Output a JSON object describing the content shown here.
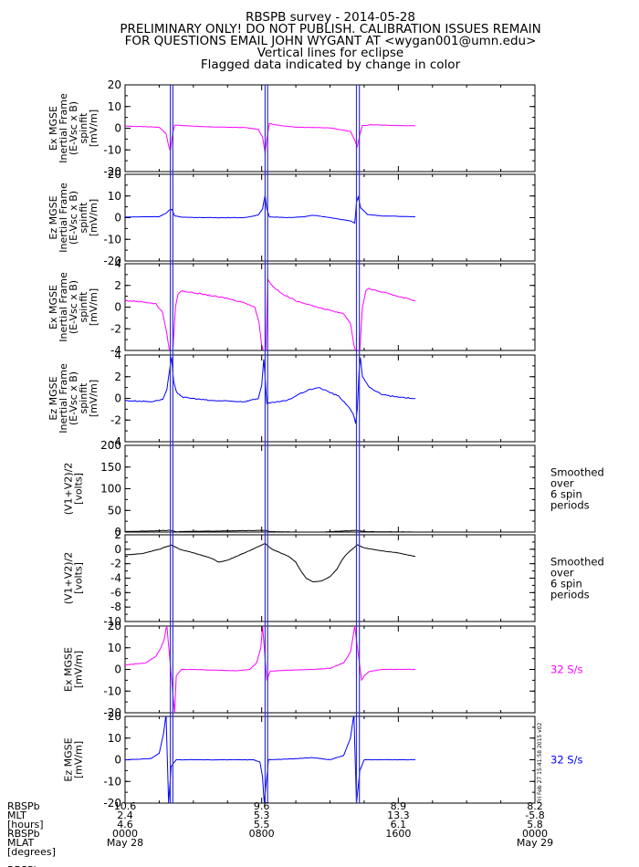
{
  "header": {
    "lines": [
      "RBSPB survey - 2014-05-28",
      "PRELIMINARY ONLY! DO NOT PUBLISH. CALIBRATION ISSUES REMAIN",
      "FOR QUESTIONS EMAIL JOHN WYGANT AT <wygan001@umn.edu>",
      "Vertical lines for eclipse",
      "Flagged data indicated by change in color"
    ]
  },
  "colors": {
    "magenta": "#ff00ff",
    "blue": "#0000ff",
    "black": "#000000",
    "eclipse_line": "#3333cc"
  },
  "eclipse_lines_hours": [
    2.65,
    2.8,
    8.2,
    8.35,
    13.55,
    13.72
  ],
  "chart_data": [
    {
      "type": "line",
      "ylabel_lines": [
        "Ex MGSE",
        "Inertial Frame",
        "(E-Vsc x B)",
        "spinfit",
        "[mV/m]"
      ],
      "ylim": [
        -20,
        20
      ],
      "yticks": [
        -20,
        -10,
        0,
        10,
        20
      ],
      "color": "magenta",
      "points": [
        [
          0,
          1
        ],
        [
          2.0,
          0.5
        ],
        [
          2.4,
          -2.5
        ],
        [
          2.55,
          -8
        ],
        [
          2.65,
          -10.5
        ],
        [
          2.78,
          -3
        ],
        [
          2.9,
          1.5
        ],
        [
          3.4,
          1.2
        ],
        [
          5,
          0.6
        ],
        [
          7,
          0.3
        ],
        [
          7.8,
          -0.5
        ],
        [
          8.05,
          -4
        ],
        [
          8.2,
          -11.5
        ],
        [
          8.3,
          -5
        ],
        [
          8.45,
          2.2
        ],
        [
          8.8,
          1.5
        ],
        [
          10,
          0.5
        ],
        [
          12,
          0.2
        ],
        [
          13.2,
          -1.5
        ],
        [
          13.45,
          -5.5
        ],
        [
          13.6,
          -8.5
        ],
        [
          13.75,
          -3
        ],
        [
          13.9,
          1.2
        ],
        [
          14.5,
          1.6
        ],
        [
          16,
          1.2
        ],
        [
          17,
          1.1
        ]
      ]
    },
    {
      "type": "line",
      "ylabel_lines": [
        "Ez MGSE",
        "Inertial Frame",
        "(E-Vsc x B)",
        "spinfit",
        "[mV/m]"
      ],
      "ylim": [
        -20,
        20
      ],
      "yticks": [
        -20,
        -10,
        0,
        10,
        20
      ],
      "color": "blue",
      "points": [
        [
          0,
          0.3
        ],
        [
          2.0,
          0.5
        ],
        [
          2.4,
          2
        ],
        [
          2.6,
          3.5
        ],
        [
          2.75,
          3.8
        ],
        [
          2.9,
          0.8
        ],
        [
          3.4,
          0.2
        ],
        [
          5,
          0
        ],
        [
          7,
          0
        ],
        [
          7.8,
          1.2
        ],
        [
          8.05,
          4
        ],
        [
          8.2,
          10.5
        ],
        [
          8.3,
          4
        ],
        [
          8.45,
          0.4
        ],
        [
          9.5,
          0
        ],
        [
          10.5,
          0.4
        ],
        [
          11.0,
          1.1
        ],
        [
          11.5,
          0.6
        ],
        [
          12.5,
          -0.6
        ],
        [
          13.2,
          -1.5
        ],
        [
          13.45,
          -2.5
        ],
        [
          13.55,
          7
        ],
        [
          13.65,
          9.5
        ],
        [
          13.8,
          4.5
        ],
        [
          14.2,
          1.5
        ],
        [
          15,
          0.8
        ],
        [
          17,
          0.4
        ]
      ]
    },
    {
      "type": "line",
      "ylabel_lines": [
        "Ex MGSE",
        "Inertial Frame",
        "(E-Vsc x B)",
        "spinfit",
        "[mV/m]"
      ],
      "ylim": [
        -4,
        4
      ],
      "yticks": [
        -4,
        -2,
        0,
        2,
        4
      ],
      "color": "magenta",
      "points": [
        [
          0,
          0.6
        ],
        [
          1.0,
          0.5
        ],
        [
          1.8,
          0.3
        ],
        [
          2.2,
          -0.5
        ],
        [
          2.45,
          -2.5
        ],
        [
          2.6,
          -4
        ],
        [
          2.8,
          -4
        ],
        [
          2.95,
          0
        ],
        [
          3.1,
          1.2
        ],
        [
          3.3,
          1.5
        ],
        [
          4.5,
          1.2
        ],
        [
          6,
          0.8
        ],
        [
          7,
          0.4
        ],
        [
          7.6,
          0
        ],
        [
          7.85,
          -1.5
        ],
        [
          8.0,
          -3.5
        ],
        [
          8.1,
          -4
        ],
        [
          8.25,
          -4
        ],
        [
          8.35,
          2.6
        ],
        [
          8.6,
          2
        ],
        [
          9.2,
          1.2
        ],
        [
          10,
          0.6
        ],
        [
          11,
          0.1
        ],
        [
          12,
          -0.3
        ],
        [
          12.8,
          -0.6
        ],
        [
          13.2,
          -1.5
        ],
        [
          13.4,
          -3.5
        ],
        [
          13.5,
          -4
        ],
        [
          13.75,
          -4
        ],
        [
          13.9,
          0
        ],
        [
          14.1,
          1.5
        ],
        [
          14.3,
          1.7
        ],
        [
          15.5,
          1.2
        ],
        [
          16.5,
          0.8
        ],
        [
          17,
          0.6
        ]
      ]
    },
    {
      "type": "line",
      "ylabel_lines": [
        "Ez MGSE",
        "Inertial Frame",
        "(E-Vsc x B)",
        "spinfit",
        "[mV/m]"
      ],
      "ylim": [
        -4,
        4
      ],
      "yticks": [
        -4,
        -2,
        0,
        2,
        4
      ],
      "color": "blue",
      "points": [
        [
          0,
          -0.2
        ],
        [
          1.5,
          -0.3
        ],
        [
          2.2,
          -0.1
        ],
        [
          2.45,
          0.8
        ],
        [
          2.6,
          2.5
        ],
        [
          2.72,
          3.8
        ],
        [
          2.85,
          1.5
        ],
        [
          3.0,
          0.6
        ],
        [
          3.4,
          0.1
        ],
        [
          5,
          -0.2
        ],
        [
          7,
          -0.3
        ],
        [
          7.8,
          0
        ],
        [
          8.0,
          1.2
        ],
        [
          8.12,
          3.6
        ],
        [
          8.2,
          2
        ],
        [
          8.3,
          -0.5
        ],
        [
          8.6,
          -0.4
        ],
        [
          9.5,
          -0.2
        ],
        [
          10.2,
          0.4
        ],
        [
          10.8,
          0.8
        ],
        [
          11.3,
          1
        ],
        [
          11.8,
          0.7
        ],
        [
          12.5,
          0.2
        ],
        [
          13.0,
          -0.6
        ],
        [
          13.35,
          -1.4
        ],
        [
          13.5,
          -2.3
        ],
        [
          13.6,
          -1
        ],
        [
          13.7,
          2.5
        ],
        [
          13.78,
          3.8
        ],
        [
          13.9,
          2
        ],
        [
          14.3,
          1
        ],
        [
          15,
          0.4
        ],
        [
          16,
          0.1
        ],
        [
          17,
          0
        ]
      ]
    },
    {
      "type": "line",
      "ylabel_lines": [
        "(V1+V2)/2",
        "[volts]"
      ],
      "ylim": [
        0,
        200
      ],
      "yticks": [
        0,
        50,
        100,
        150,
        200
      ],
      "color": "black",
      "side_note_lines": [
        "Smoothed",
        "over",
        "6 spin",
        "periods"
      ],
      "points": [
        [
          0,
          1
        ],
        [
          2.7,
          4
        ],
        [
          3,
          1
        ],
        [
          8.2,
          4
        ],
        [
          8.5,
          1
        ],
        [
          11,
          -1
        ],
        [
          13.6,
          4
        ],
        [
          14,
          1
        ],
        [
          17,
          0
        ]
      ]
    },
    {
      "type": "line",
      "ylabel_lines": [
        "(V1+V2)/2",
        "[volts]"
      ],
      "ylim": [
        -10,
        2
      ],
      "yticks": [
        -10,
        -8,
        -6,
        -4,
        -2,
        0,
        2
      ],
      "color": "black",
      "side_note_lines": [
        "Smoothed",
        "over",
        "6 spin",
        "periods"
      ],
      "points": [
        [
          0,
          -0.8
        ],
        [
          1.0,
          -0.6
        ],
        [
          2.0,
          0
        ],
        [
          2.7,
          0.6
        ],
        [
          3.2,
          0
        ],
        [
          4,
          -0.5
        ],
        [
          5,
          -1.2
        ],
        [
          5.5,
          -1.8
        ],
        [
          6,
          -1.5
        ],
        [
          7,
          -0.5
        ],
        [
          8.2,
          0.8
        ],
        [
          8.6,
          0
        ],
        [
          9.2,
          -0.6
        ],
        [
          9.6,
          -1
        ],
        [
          10.0,
          -1.8
        ],
        [
          10.3,
          -3
        ],
        [
          10.6,
          -4
        ],
        [
          11.0,
          -4.5
        ],
        [
          11.5,
          -4.4
        ],
        [
          12.0,
          -3.8
        ],
        [
          12.4,
          -2.8
        ],
        [
          12.7,
          -1.5
        ],
        [
          13.0,
          -0.6
        ],
        [
          13.6,
          0.6
        ],
        [
          14,
          0.2
        ],
        [
          15,
          -0.2
        ],
        [
          16,
          -0.5
        ],
        [
          17,
          -1
        ]
      ]
    },
    {
      "type": "line",
      "ylabel_lines": [
        "Ex MGSE",
        "[mV/m]"
      ],
      "ylim": [
        -20,
        20
      ],
      "yticks": [
        -20,
        -10,
        0,
        10,
        20
      ],
      "color": "magenta",
      "side_note_lines": [
        "32 S/s"
      ],
      "points": [
        [
          0,
          2
        ],
        [
          1.2,
          3
        ],
        [
          1.8,
          6
        ],
        [
          2.1,
          10
        ],
        [
          2.3,
          14
        ],
        [
          2.4,
          19
        ],
        [
          2.45,
          20
        ],
        [
          2.9,
          -20
        ],
        [
          3.0,
          -3
        ],
        [
          3.3,
          0
        ],
        [
          4,
          0
        ],
        [
          5,
          -0.3
        ],
        [
          6.5,
          -0.6
        ],
        [
          7.3,
          0
        ],
        [
          7.7,
          3
        ],
        [
          7.95,
          10
        ],
        [
          8.05,
          20
        ],
        [
          8.3,
          -5
        ],
        [
          8.5,
          -0.8
        ],
        [
          9.5,
          -0.4
        ],
        [
          11,
          0
        ],
        [
          12,
          0.5
        ],
        [
          12.8,
          3
        ],
        [
          13.2,
          8
        ],
        [
          13.45,
          20
        ],
        [
          13.85,
          -5
        ],
        [
          14.0,
          -3
        ],
        [
          14.3,
          -1
        ],
        [
          15,
          0
        ],
        [
          16,
          0
        ],
        [
          17,
          0
        ]
      ]
    },
    {
      "type": "line",
      "ylabel_lines": [
        "Ez MGSE",
        "[mV/m]"
      ],
      "ylim": [
        -20,
        20
      ],
      "yticks": [
        -20,
        -10,
        0,
        10,
        20
      ],
      "color": "blue",
      "side_note_lines": [
        "32 S/s"
      ],
      "timestamp": "Fri Feb 27 15:41:58 2015 v02",
      "points": [
        [
          0,
          0
        ],
        [
          1.5,
          0.5
        ],
        [
          2.0,
          3
        ],
        [
          2.25,
          12
        ],
        [
          2.4,
          21
        ],
        [
          2.55,
          -20
        ],
        [
          2.7,
          -3
        ],
        [
          3.0,
          0
        ],
        [
          5,
          0
        ],
        [
          7.5,
          0
        ],
        [
          7.9,
          -1
        ],
        [
          8.05,
          -8
        ],
        [
          8.15,
          -20
        ],
        [
          8.4,
          0
        ],
        [
          9.5,
          0.3
        ],
        [
          11,
          1
        ],
        [
          12,
          0
        ],
        [
          12.8,
          2
        ],
        [
          13.2,
          10
        ],
        [
          13.4,
          21
        ],
        [
          13.55,
          -20
        ],
        [
          13.75,
          -5
        ],
        [
          14.0,
          0
        ],
        [
          16,
          0
        ],
        [
          17,
          0
        ]
      ]
    }
  ],
  "xaxis": {
    "label_lines": [
      "RBSPb",
      "MLT",
      "[hours]",
      "RBSPb",
      "MLAT",
      "[degrees]",
      "",
      "RBSPb"
    ],
    "range_hours": [
      0,
      24
    ],
    "ticks": [
      {
        "hours": 0,
        "values": [
          "10.6",
          "2.4",
          "4.6",
          "0000",
          "May 28"
        ]
      },
      {
        "hours": 8,
        "values": [
          "9.6",
          "5.3",
          "5.5",
          "0800",
          ""
        ]
      },
      {
        "hours": 16,
        "values": [
          "8.9",
          "13.3",
          "6.1",
          "1600",
          ""
        ]
      },
      {
        "hours": 24,
        "values": [
          "8.2",
          "-5.8",
          "5.8",
          "0000",
          "May 29"
        ]
      }
    ]
  }
}
